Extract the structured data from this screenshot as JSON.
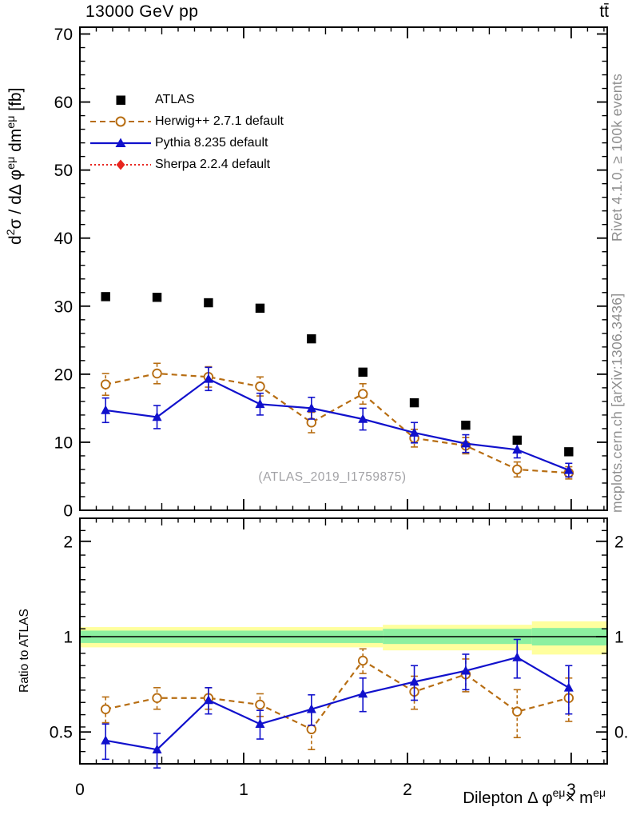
{
  "header": {
    "title": "13000 GeV pp",
    "process_label": "tt̄"
  },
  "side_notes": {
    "top": "Rivet 4.1.0, ≥ 100k events",
    "bottom": "mcplots.cern.ch [arXiv:1306.3436]"
  },
  "watermark": "(ATLAS_2019_I1759875)",
  "colors": {
    "atlas": "#000000",
    "herwig": "#b76d12",
    "pythia": "#1111cc",
    "sherpa": "#e8251f",
    "band_green": "#8cf0a0",
    "band_yellow": "#ffff9e",
    "frame": "#000000",
    "note_gray": "#8e8e8e"
  },
  "legend": [
    {
      "label": "ATLAS",
      "marker": "square",
      "line": "none"
    },
    {
      "label": "Herwig++ 2.7.1 default",
      "marker": "open-circle",
      "line": "dashed"
    },
    {
      "label": "Pythia 8.235 default",
      "marker": "triangle",
      "line": "solid"
    },
    {
      "label": "Sherpa 2.2.4 default",
      "marker": "diamond",
      "line": "dotted"
    }
  ],
  "chart_data": {
    "type": "scatter",
    "title": "13000 GeV pp",
    "process_label": "tt̄",
    "x": [
      0.157,
      0.471,
      0.785,
      1.1,
      1.414,
      1.728,
      2.042,
      2.356,
      2.67,
      2.985
    ],
    "xlim": [
      0,
      3.22
    ],
    "xticks": [
      0,
      1,
      2,
      3
    ],
    "xlabel_segments": [
      {
        "t": "Dilepton Δ φ"
      },
      {
        "t": "eμ",
        "sup": true
      },
      {
        "t": "× m"
      },
      {
        "t": "eμ",
        "sup": true
      }
    ],
    "main": {
      "ylabel_segments": [
        {
          "t": "d"
        },
        {
          "t": "2",
          "sup": true
        },
        {
          "t": "σ / dΔ φ"
        },
        {
          "t": "eμ",
          "sup": true
        },
        {
          "t": " dm"
        },
        {
          "t": "eμ",
          "sup": true
        },
        {
          "t": " [fb]"
        }
      ],
      "ylim": [
        0,
        71
      ],
      "yticks": [
        0,
        10,
        20,
        30,
        40,
        50,
        60,
        70
      ],
      "grid": false,
      "series": [
        {
          "name": "ATLAS",
          "marker": "square",
          "values": [
            31.4,
            31.3,
            30.5,
            29.7,
            25.2,
            20.3,
            15.8,
            12.5,
            10.3,
            8.6
          ],
          "errors": [
            0,
            0,
            0,
            0,
            0,
            0,
            0,
            0,
            0,
            0
          ]
        },
        {
          "name": "Herwig++ 2.7.1 default",
          "marker": "open-circle",
          "line": "dashed",
          "values": [
            18.5,
            20.1,
            19.6,
            18.2,
            12.9,
            17.1,
            10.6,
            9.5,
            6.0,
            5.5
          ],
          "errors": [
            1.6,
            1.5,
            1.5,
            1.4,
            1.5,
            1.5,
            1.3,
            1.2,
            1.1,
            0.9
          ]
        },
        {
          "name": "Pythia 8.235 default",
          "marker": "triangle",
          "line": "solid",
          "values": [
            14.7,
            13.7,
            19.3,
            15.6,
            15.0,
            13.4,
            11.4,
            9.8,
            8.9,
            5.9
          ],
          "errors": [
            1.8,
            1.7,
            1.7,
            1.6,
            1.6,
            1.6,
            1.5,
            1.3,
            1.2,
            1.0
          ]
        },
        {
          "name": "Sherpa 2.2.4 default",
          "marker": "diamond",
          "line": "dotted",
          "values": [],
          "errors": []
        }
      ]
    },
    "ratio": {
      "ylabel": "Ratio to ATLAS",
      "scale": "log",
      "ylim": [
        0.4,
        2.37
      ],
      "yticks": [
        0.5,
        1,
        2
      ],
      "unity_band_segments": [
        {
          "x0": 0,
          "x1": 1.85,
          "yellow": [
            0.925,
            1.072
          ],
          "green": [
            0.955,
            1.045
          ]
        },
        {
          "x0": 1.85,
          "x1": 2.76,
          "yellow": [
            0.905,
            1.09
          ],
          "green": [
            0.948,
            1.058
          ]
        },
        {
          "x0": 2.76,
          "x1": 3.22,
          "yellow": [
            0.878,
            1.118
          ],
          "green": [
            0.938,
            1.065
          ]
        }
      ],
      "series": [
        {
          "name": "Herwig++ 2.7.1 default",
          "marker": "open-circle",
          "line": "dashed",
          "values": [
            0.59,
            0.64,
            0.64,
            0.61,
            0.51,
            0.84,
            0.67,
            0.76,
            0.58,
            0.64
          ],
          "errors": [
            0.055,
            0.05,
            0.05,
            0.05,
            0.07,
            0.075,
            0.08,
            0.09,
            0.1,
            0.1
          ]
        },
        {
          "name": "Pythia 8.235 default",
          "marker": "triangle",
          "line": "solid",
          "values": [
            0.47,
            0.44,
            0.63,
            0.53,
            0.59,
            0.66,
            0.72,
            0.78,
            0.86,
            0.69
          ],
          "errors": [
            0.06,
            0.055,
            0.06,
            0.055,
            0.065,
            0.08,
            0.09,
            0.1,
            0.12,
            0.12
          ]
        }
      ]
    }
  }
}
